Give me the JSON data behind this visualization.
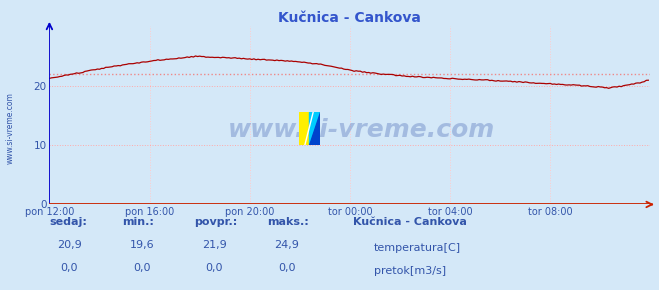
{
  "title": "Kučnica - Cankova",
  "bg_color": "#d4e8f8",
  "plot_bg_color": "#d4e8f8",
  "x_labels": [
    "pon 12:00",
    "pon 16:00",
    "pon 20:00",
    "tor 00:00",
    "tor 04:00",
    "tor 08:00"
  ],
  "x_ticks": [
    0,
    48,
    96,
    144,
    192,
    240
  ],
  "x_max": 288,
  "y_min": 0,
  "y_max": 30,
  "y_ticks": [
    0,
    10,
    20
  ],
  "temp_avg": 21.9,
  "temp_min": 19.6,
  "temp_max": 24.9,
  "temp_sedaj": 20.9,
  "temp_color": "#aa0000",
  "flow_color": "#00bb00",
  "avg_line_color": "#ee8888",
  "grid_h_color": "#ffaaaa",
  "grid_v_color": "#ffcccc",
  "y_axis_color": "#0000cc",
  "x_axis_color": "#cc2200",
  "text_color": "#3355aa",
  "title_color": "#3355cc",
  "watermark": "www.si-vreme.com",
  "left_label": "www.si-vreme.com",
  "legend_station": "Kučnica - Cankova",
  "legend_temp": "temperatura[C]",
  "legend_flow": "pretok[m3/s]",
  "stat_headers": [
    "sedaj:",
    "min.:",
    "povpr.:",
    "maks.:"
  ],
  "stat_temp": [
    "20,9",
    "19,6",
    "21,9",
    "24,9"
  ],
  "stat_flow": [
    "0,0",
    "0,0",
    "0,0",
    "0,0"
  ],
  "temp_keypoints_x": [
    0,
    5,
    15,
    30,
    50,
    70,
    85,
    100,
    115,
    130,
    145,
    160,
    175,
    190,
    205,
    220,
    235,
    250,
    262,
    268,
    275,
    283,
    287
  ],
  "temp_keypoints_y": [
    21.2,
    21.5,
    22.2,
    23.2,
    24.2,
    24.9,
    24.7,
    24.4,
    24.1,
    23.6,
    22.5,
    21.9,
    21.5,
    21.2,
    21.0,
    20.7,
    20.4,
    20.1,
    19.8,
    19.6,
    19.9,
    20.5,
    20.9
  ]
}
